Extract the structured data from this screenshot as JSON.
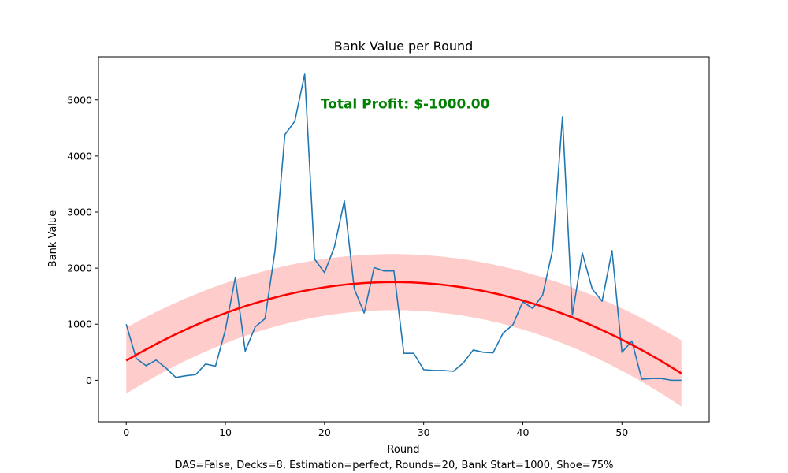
{
  "chart_data": {
    "type": "line",
    "title": "Bank Value per Round",
    "xlabel": "Round",
    "ylabel": "Bank Value",
    "xlim": [
      -2.8,
      58.8
    ],
    "ylim": [
      -740,
      5770
    ],
    "xticks": [
      0,
      10,
      20,
      30,
      40,
      50
    ],
    "yticks": [
      0,
      1000,
      2000,
      3000,
      4000,
      5000
    ],
    "grid": false,
    "x": [
      0,
      1,
      2,
      3,
      4,
      5,
      6,
      7,
      8,
      9,
      10,
      11,
      12,
      13,
      14,
      15,
      16,
      17,
      18,
      19,
      20,
      21,
      22,
      23,
      24,
      25,
      26,
      27,
      28,
      29,
      30,
      31,
      32,
      33,
      34,
      35,
      36,
      37,
      38,
      39,
      40,
      41,
      42,
      43,
      44,
      45,
      46,
      47,
      48,
      49,
      50,
      51,
      52,
      53,
      54,
      55,
      56
    ],
    "series": [
      {
        "color": "#1f77b4",
        "values": [
          1000,
          390,
          260,
          360,
          220,
          50,
          80,
          100,
          290,
          250,
          900,
          1830,
          520,
          950,
          1100,
          2300,
          4380,
          4620,
          5460,
          2160,
          1920,
          2380,
          3200,
          1630,
          1200,
          2010,
          1950,
          1950,
          480,
          480,
          190,
          175,
          175,
          160,
          310,
          540,
          500,
          490,
          840,
          990,
          1400,
          1280,
          1520,
          2320,
          4700,
          1160,
          2270,
          1630,
          1410,
          2310,
          500,
          700,
          20,
          30,
          30,
          0,
          0
        ]
      },
      {
        "color": "#ff0000",
        "fit": "quadratic",
        "coefficients": [
          350,
          104,
          -1.93
        ]
      }
    ],
    "band": {
      "color": "#ffcccc",
      "half_width_ends": 590,
      "half_width_mid": 500
    },
    "annotation": {
      "text": "Total Profit: $-1000.00",
      "x": 19.6,
      "y": 4850,
      "color": "#008000"
    },
    "footnote": "DAS=False, Decks=8, Estimation=perfect, Rounds=20, Bank Start=1000, Shoe=75%"
  }
}
